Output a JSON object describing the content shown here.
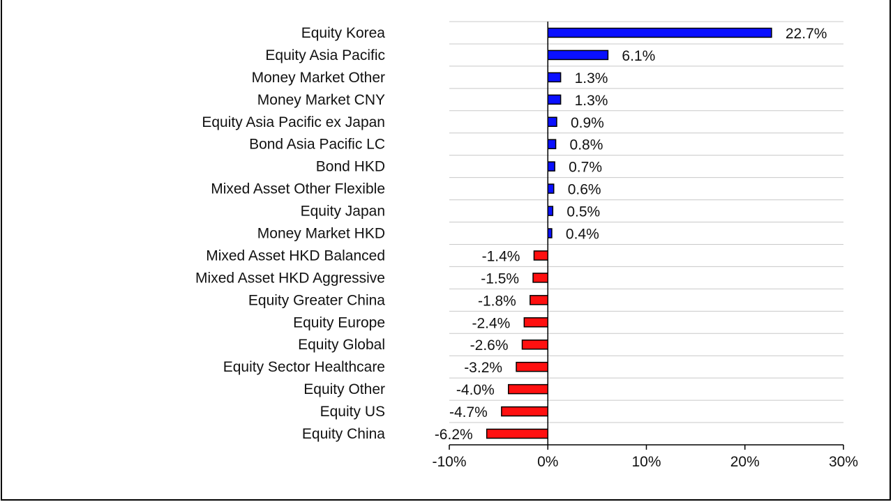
{
  "chart_data": {
    "type": "bar",
    "orientation": "horizontal",
    "categories": [
      "Equity Korea",
      "Equity Asia Pacific",
      "Money Market Other",
      "Money Market CNY",
      "Equity Asia Pacific ex Japan",
      "Bond Asia Pacific LC",
      "Bond HKD",
      "Mixed Asset Other Flexible",
      "Equity Japan",
      "Money Market HKD",
      "Mixed Asset HKD Balanced",
      "Mixed Asset HKD Aggressive",
      "Equity Greater China",
      "Equity Europe",
      "Equity Global",
      "Equity Sector Healthcare",
      "Equity Other",
      "Equity US",
      "Equity China"
    ],
    "values": [
      22.7,
      6.1,
      1.3,
      1.3,
      0.9,
      0.8,
      0.7,
      0.6,
      0.5,
      0.4,
      -1.4,
      -1.5,
      -1.8,
      -2.4,
      -2.6,
      -3.2,
      -4.0,
      -4.7,
      -6.2
    ],
    "value_labels": [
      "22.7%",
      "6.1%",
      "1.3%",
      "1.3%",
      "0.9%",
      "0.8%",
      "0.7%",
      "0.6%",
      "0.5%",
      "0.4%",
      "-1.4%",
      "-1.5%",
      "-1.8%",
      "-2.4%",
      "-2.6%",
      "-3.2%",
      "-4.0%",
      "-4.7%",
      "-6.2%"
    ],
    "xlim": [
      -10,
      30
    ],
    "x_ticks": [
      -10,
      0,
      10,
      20,
      30
    ],
    "x_tick_labels": [
      "-10%",
      "0%",
      "10%",
      "20%",
      "30%"
    ],
    "grid": "horizontal lines between categories",
    "legend": "none",
    "colors": {
      "positive": "#0a10ff",
      "negative": "#ff1010",
      "bar_outline": "#000000",
      "grid": "#c8c8c8",
      "axis": "#000000"
    }
  }
}
